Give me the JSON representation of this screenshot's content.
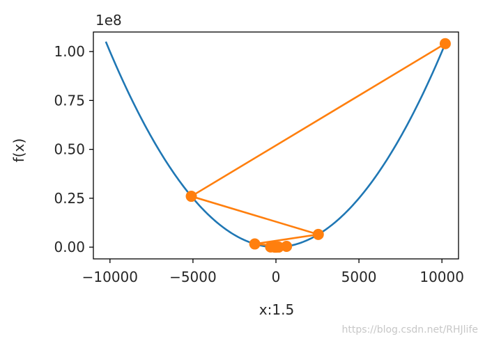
{
  "chart_data": {
    "type": "line",
    "xlabel": "x:1.5",
    "ylabel": "f(x)",
    "y_offset_label": "1e8",
    "xlim": [
      -11000,
      11000
    ],
    "ylim": [
      -0.06,
      1.1
    ],
    "y_scale_factor": 100000000,
    "x_ticks": [
      -10000,
      -5000,
      0,
      5000,
      10000
    ],
    "x_tick_labels": [
      "−10000",
      "−5000",
      "0",
      "5000",
      "10000"
    ],
    "y_ticks": [
      0.0,
      0.25,
      0.5,
      0.75,
      1.0
    ],
    "y_tick_labels": [
      "0.00",
      "0.25",
      "0.50",
      "0.75",
      "1.00"
    ],
    "grid": false,
    "series": [
      {
        "kind": "curve",
        "function": "x^2",
        "x_range": [
          -10250,
          10250
        ],
        "color": "#1f77b4"
      },
      {
        "kind": "line-with-markers",
        "color": "#ff7f0e",
        "x": [
          10200,
          -5100,
          2550,
          -1275,
          637.5,
          -318.75,
          159.375,
          -79.6875,
          39.84,
          -19.92
        ],
        "y": [
          1.0404,
          0.2601,
          0.065,
          0.0163,
          0.0041,
          0.001,
          0.0003,
          0.0001,
          0.0,
          0.0
        ]
      }
    ]
  },
  "watermark": "https://blog.csdn.net/RHJlife"
}
